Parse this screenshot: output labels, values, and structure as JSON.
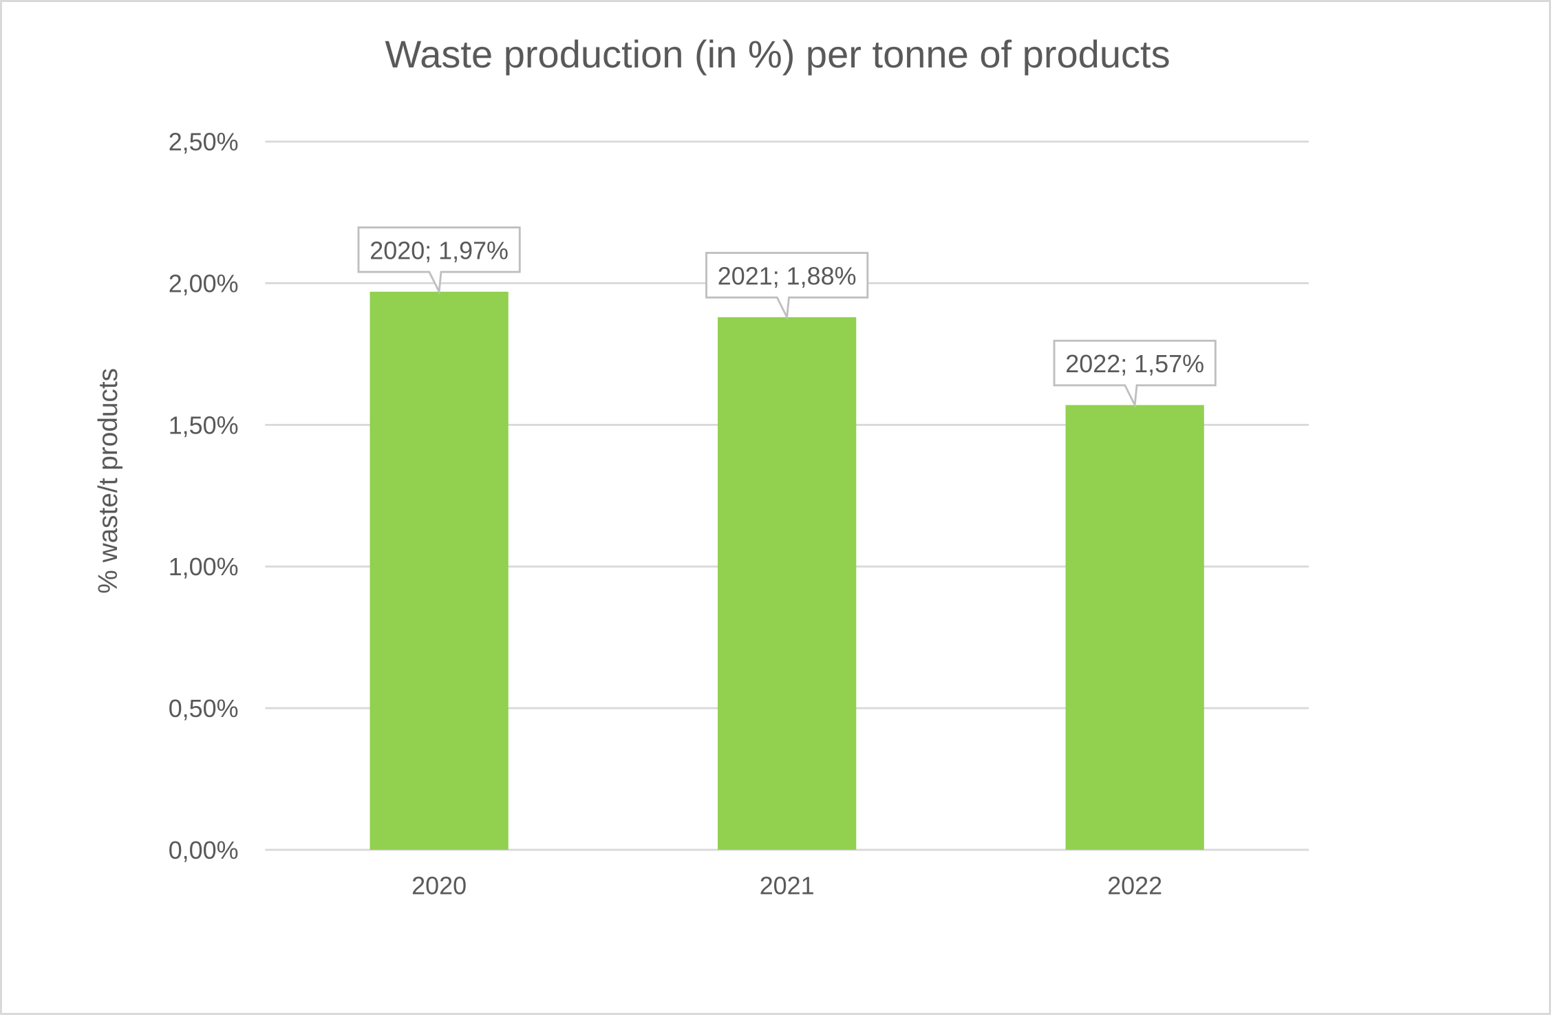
{
  "chart_data": {
    "type": "bar",
    "title": "Waste production (in %) per tonne of products",
    "xlabel": "",
    "ylabel": "% waste/t products",
    "categories": [
      "2020",
      "2021",
      "2022"
    ],
    "values": [
      1.97,
      1.88,
      1.57
    ],
    "data_labels": [
      "2020; 1,97%",
      "2021; 1,88%",
      "2022; 1,57%"
    ],
    "ylim": [
      0,
      2.5
    ],
    "yticks": [
      0,
      0.5,
      1.0,
      1.5,
      2.0,
      2.5
    ],
    "ytick_labels": [
      "0,00%",
      "0,50%",
      "1,00%",
      "1,50%",
      "2,00%",
      "2,50%"
    ],
    "grid": true,
    "legend": "none",
    "colors": {
      "bar": "#92d050",
      "grid": "#d9d9d9",
      "text": "#595959",
      "callout_border": "#bfbfbf"
    }
  }
}
